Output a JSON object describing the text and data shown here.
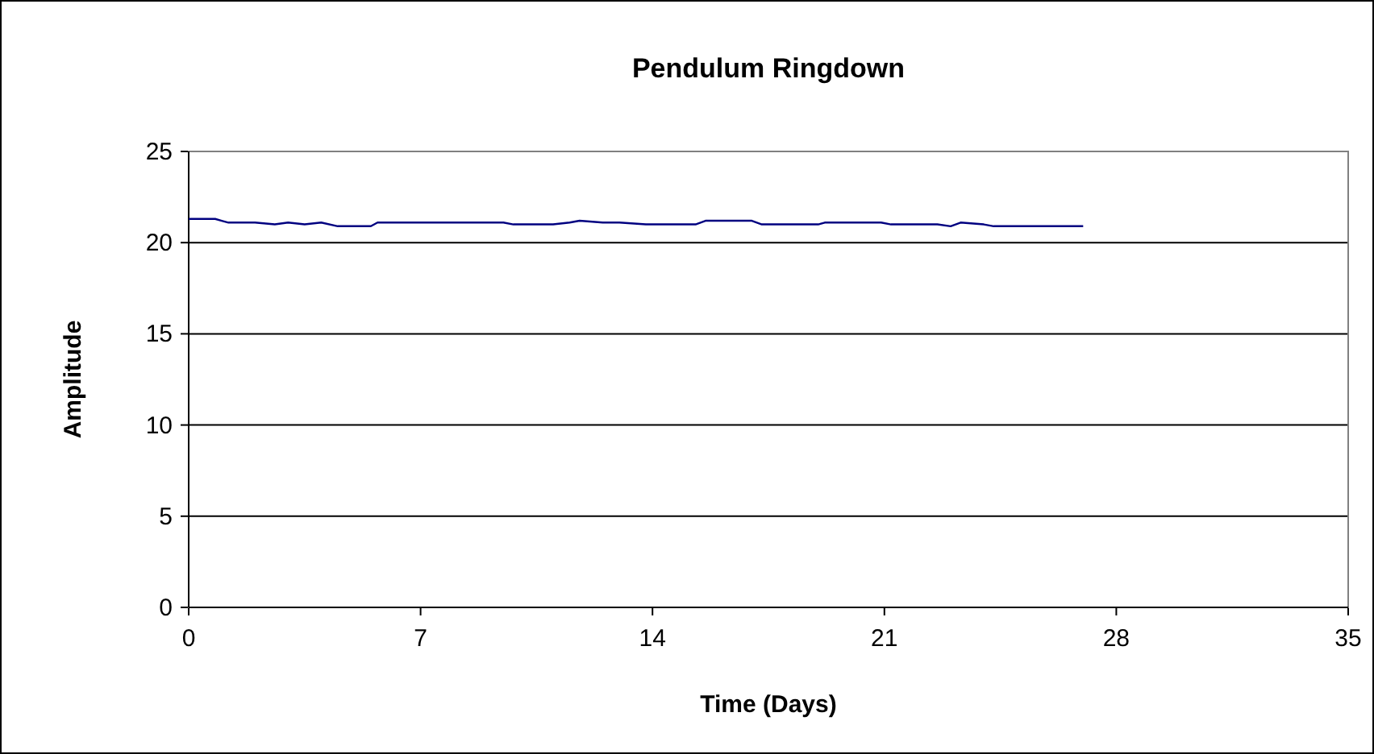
{
  "chart_data": {
    "type": "line",
    "title": "Pendulum Ringdown",
    "xlabel": "Time (Days)",
    "ylabel": "Amplitude",
    "xlim": [
      0,
      35
    ],
    "xticks": [
      0,
      7,
      14,
      21,
      28,
      35
    ],
    "ylim": [
      0,
      25
    ],
    "yticks": [
      0,
      5,
      10,
      15,
      20,
      25
    ],
    "grid": "y",
    "line_style": "solid",
    "series": [
      {
        "color": "#000080",
        "x": [
          0,
          0.8,
          1.0,
          1.2,
          2.0,
          2.6,
          3.0,
          3.5,
          4.0,
          4.5,
          5.0,
          5.5,
          5.7,
          7.0,
          8.5,
          9.5,
          9.8,
          10.5,
          11.0,
          11.5,
          11.8,
          12.5,
          13.0,
          13.8,
          14.5,
          15.3,
          15.6,
          16.3,
          17.0,
          17.3,
          18.0,
          19.0,
          19.2,
          20.0,
          20.9,
          21.2,
          22.0,
          22.6,
          23.0,
          23.3,
          24.0,
          24.3,
          25.0,
          25.2,
          26.0,
          27.0
        ],
        "values": [
          21.3,
          21.3,
          21.2,
          21.1,
          21.1,
          21.0,
          21.1,
          21.0,
          21.1,
          20.9,
          20.9,
          20.9,
          21.1,
          21.1,
          21.1,
          21.1,
          21.0,
          21.0,
          21.0,
          21.1,
          21.2,
          21.1,
          21.1,
          21.0,
          21.0,
          21.0,
          21.2,
          21.2,
          21.2,
          21.0,
          21.0,
          21.0,
          21.1,
          21.1,
          21.1,
          21.0,
          21.0,
          21.0,
          20.9,
          21.1,
          21.0,
          20.9,
          20.9,
          20.9,
          20.9,
          20.9
        ]
      }
    ]
  }
}
